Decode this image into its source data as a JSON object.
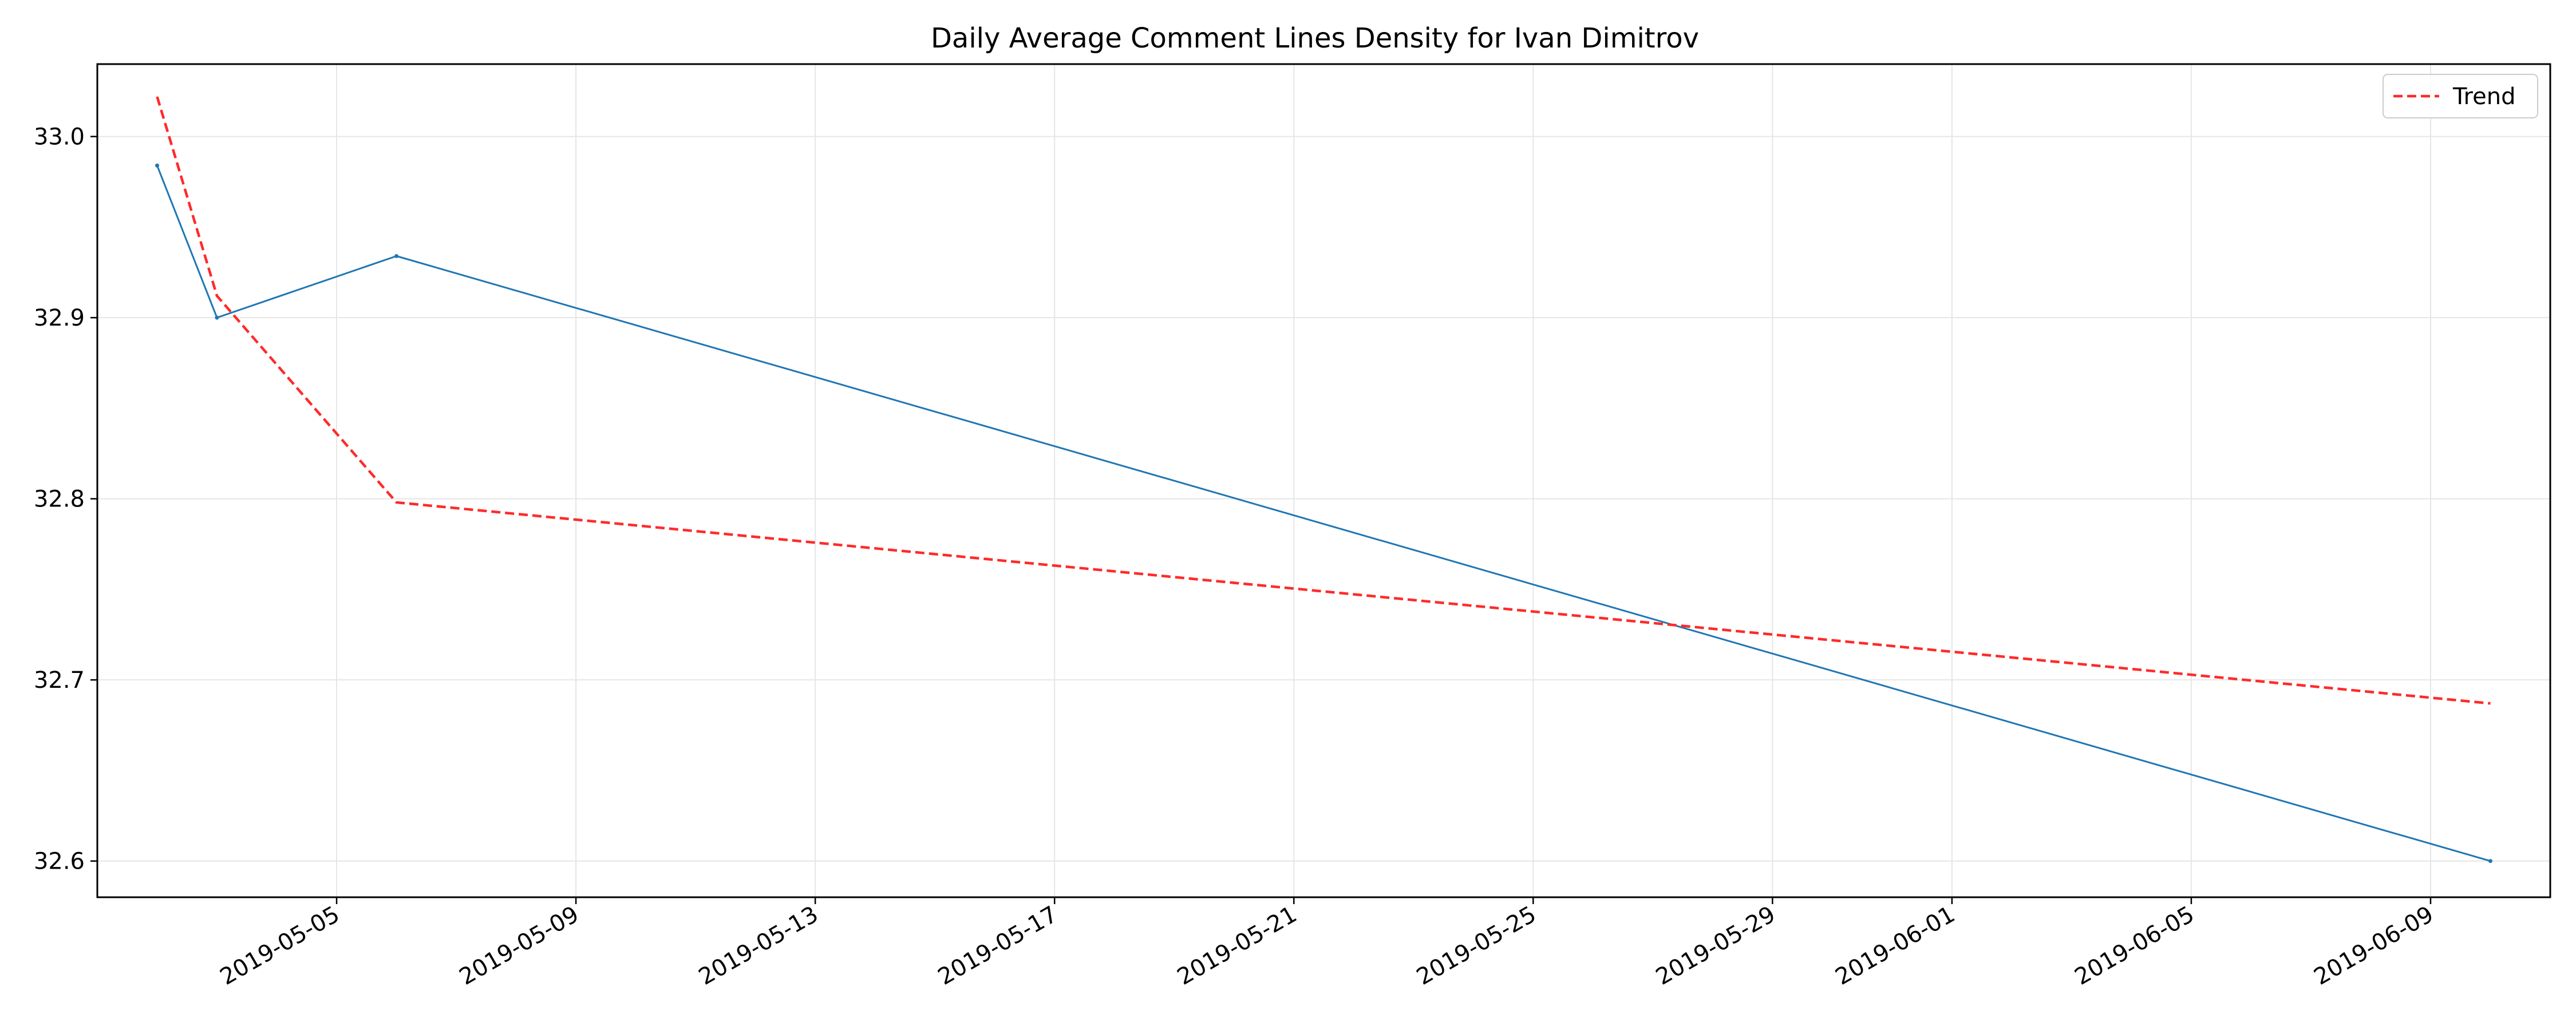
{
  "chart_data": {
    "type": "line",
    "title": "Daily Average Comment Lines Density for Ivan Dimitrov",
    "xlabel": "",
    "ylabel": "",
    "x_ticks": [
      "2019-05-05",
      "2019-05-09",
      "2019-05-13",
      "2019-05-17",
      "2019-05-21",
      "2019-05-25",
      "2019-05-29",
      "2019-06-01",
      "2019-06-05",
      "2019-06-09"
    ],
    "y_ticks": [
      "32.6",
      "32.7",
      "32.8",
      "32.9",
      "33.0"
    ],
    "xlim": [
      "2019-05-01",
      "2019-06-11"
    ],
    "ylim": [
      32.58,
      33.04
    ],
    "grid": true,
    "legend_position": "top-right",
    "series": [
      {
        "style": "solid",
        "color": "#1f77b4",
        "x": [
          "2019-05-02",
          "2019-05-03",
          "2019-05-06",
          "2019-06-10"
        ],
        "y": [
          32.984,
          32.9,
          32.934,
          32.6
        ]
      },
      {
        "name": "Trend",
        "style": "dashed",
        "color": "#ff2a2a",
        "x": [
          "2019-05-02",
          "2019-05-03",
          "2019-05-06",
          "2019-06-10"
        ],
        "y": [
          33.022,
          32.912,
          32.798,
          32.687
        ]
      }
    ]
  }
}
